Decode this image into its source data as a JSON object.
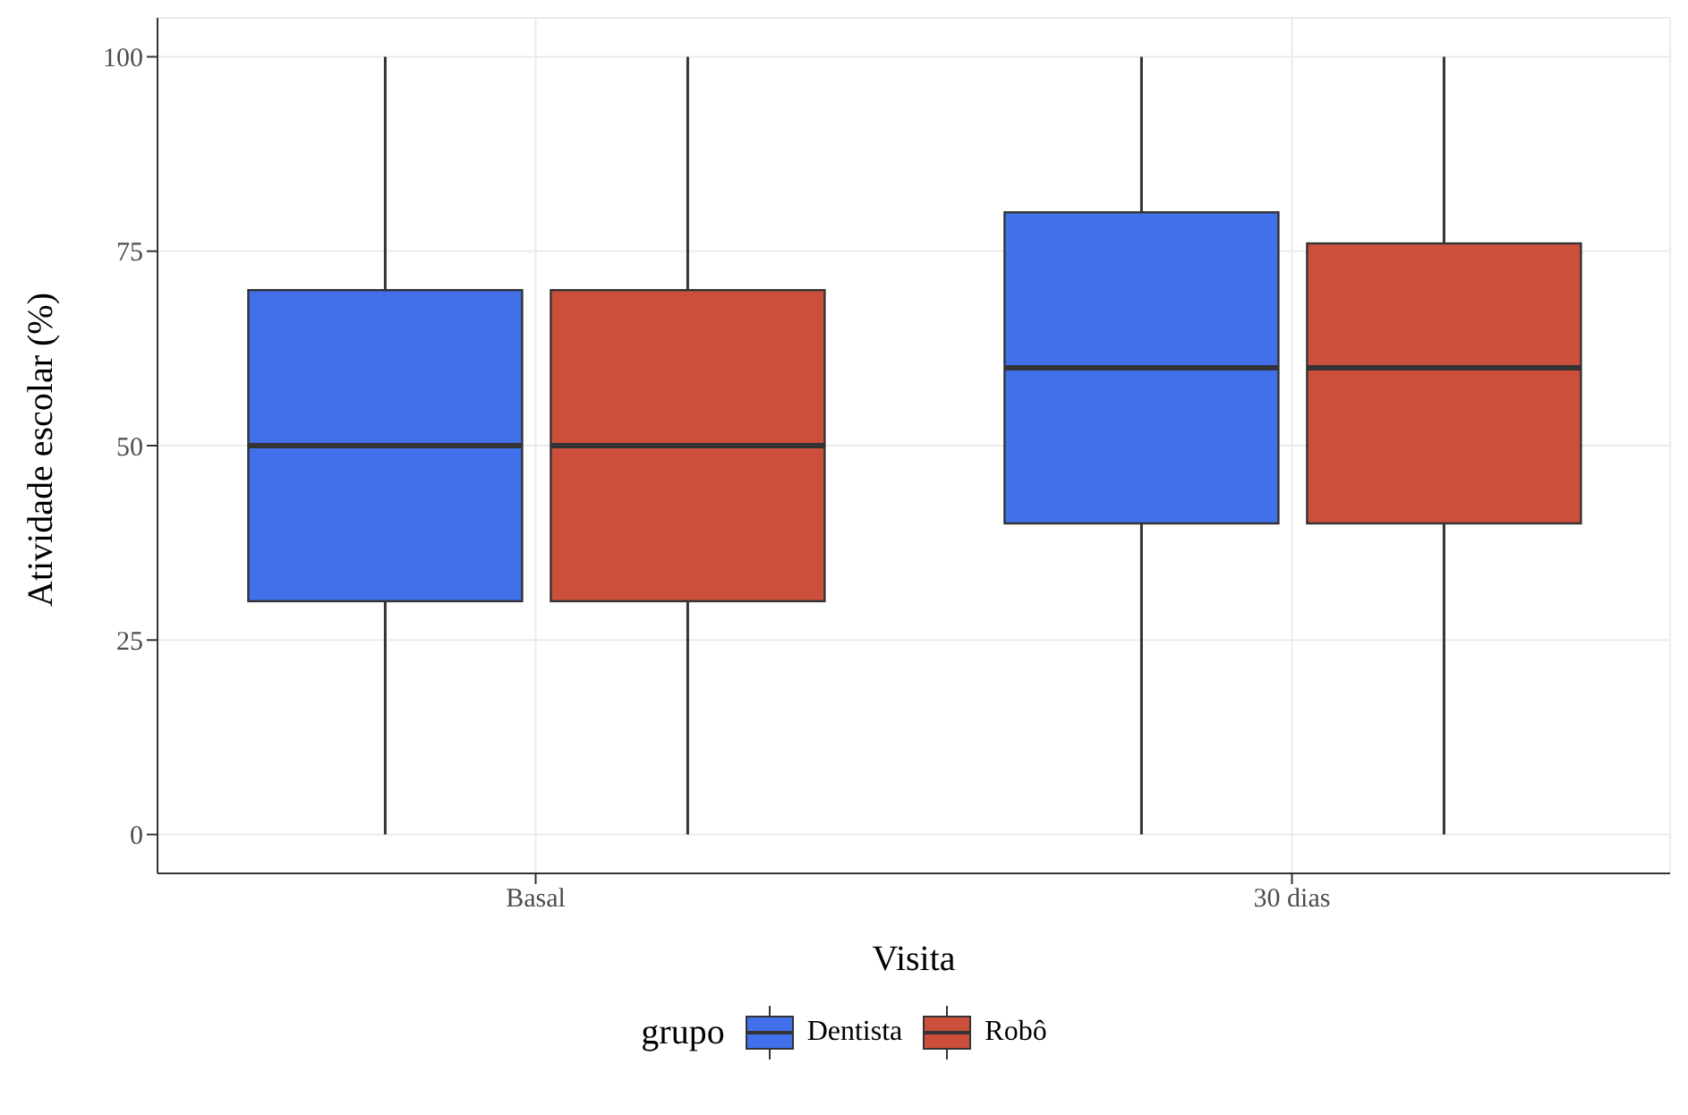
{
  "chart_data": {
    "type": "box",
    "xlabel": "Visita",
    "ylabel": "Atividade escolar (%)",
    "legend_title": "grupo",
    "categories": [
      "Basal",
      "30 dias"
    ],
    "series": [
      {
        "name": "Dentista",
        "color": "#4270eb",
        "boxes": [
          {
            "low": 0,
            "q1": 30,
            "median": 50,
            "q3": 70,
            "high": 100
          },
          {
            "low": 0,
            "q1": 40,
            "median": 60,
            "q3": 80,
            "high": 100
          }
        ]
      },
      {
        "name": "Robô",
        "color": "#cc4f3c",
        "boxes": [
          {
            "low": 0,
            "q1": 30,
            "median": 50,
            "q3": 70,
            "high": 100
          },
          {
            "low": 0,
            "q1": 40,
            "median": 60,
            "q3": 76,
            "high": 100
          }
        ]
      }
    ],
    "ylim": [
      -5,
      105
    ],
    "yticks": [
      0,
      25,
      50,
      75,
      100
    ],
    "grid": true,
    "legend": "bottom"
  }
}
